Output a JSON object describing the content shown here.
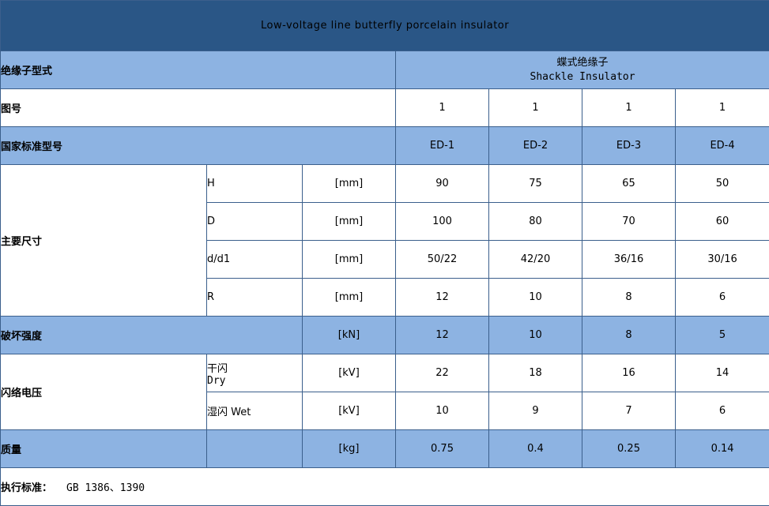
{
  "title": "Low-voltage line butterfly porcelain insulator",
  "insulator_type": {
    "label": "绝缘子型式",
    "value_zh": "蝶式绝缘子",
    "value_en": "Shackle Insulator"
  },
  "figure_no": {
    "label": "图号",
    "values": [
      "1",
      "1",
      "1",
      "1"
    ]
  },
  "national_model": {
    "label": "国家标准型号",
    "values": [
      "ED-1",
      "ED-2",
      "ED-3",
      "ED-4"
    ]
  },
  "main_dimensions": {
    "label": "主要尺寸",
    "rows": [
      {
        "symbol": "H",
        "unit": "[mm]",
        "values": [
          "90",
          "75",
          "65",
          "50"
        ]
      },
      {
        "symbol": "D",
        "unit": "[mm]",
        "values": [
          "100",
          "80",
          "70",
          "60"
        ]
      },
      {
        "symbol": "d/d1",
        "unit": "[mm]",
        "values": [
          "50/22",
          "42/20",
          "36/16",
          "30/16"
        ]
      },
      {
        "symbol": "R",
        "unit": "[mm]",
        "values": [
          "12",
          "10",
          "8",
          "6"
        ]
      }
    ]
  },
  "breaking_strength": {
    "label": "破坏强度",
    "unit": "[kN]",
    "values": [
      "12",
      "10",
      "8",
      "5"
    ]
  },
  "flashover_voltage": {
    "label": "闪络电压",
    "dry": {
      "label_zh": "干闪",
      "label_en": "Dry",
      "unit": "[kV]",
      "values": [
        "22",
        "18",
        "16",
        "14"
      ]
    },
    "wet": {
      "label": "湿闪 Wet",
      "unit": "[kV]",
      "values": [
        "10",
        "9",
        "7",
        "6"
      ]
    }
  },
  "mass": {
    "label": "质量",
    "unit": "[kg]",
    "values": [
      "0.75",
      "0.4",
      "0.25",
      "0.14"
    ]
  },
  "standard": {
    "label": "执行标准：",
    "value": "GB  1386、1390"
  },
  "colors": {
    "title_bg": "#2a5686",
    "band_blue": "#8db3e2",
    "border": "#3b5f8c"
  }
}
